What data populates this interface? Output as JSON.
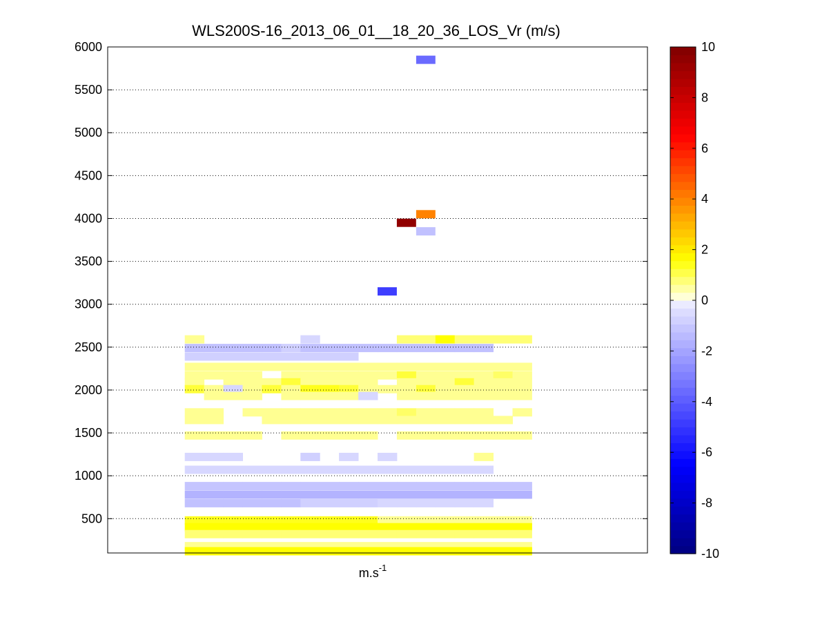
{
  "chart_data": {
    "type": "heatmap",
    "title": "WLS200S-16_2013_06_01__18_20_36_LOS_Vr (m/s)",
    "xlabel": "m.s",
    "xlabel_superscript": "-1",
    "ylabel": "",
    "ylim": [
      100,
      6000
    ],
    "yticks": [
      500,
      1000,
      1500,
      2000,
      2500,
      3000,
      3500,
      4000,
      4500,
      5000,
      5500,
      6000
    ],
    "grid": "horizontal dotted",
    "colorbar": {
      "range": [
        -10,
        10
      ],
      "ticks": [
        -10,
        -8,
        -6,
        -4,
        -2,
        0,
        2,
        4,
        6,
        8,
        10
      ],
      "levels": 64,
      "stops": [
        {
          "v": -10,
          "color": "#00007f"
        },
        {
          "v": -6.5,
          "color": "#0000ff"
        },
        {
          "v": -0.2,
          "color": "#e6e6ff"
        },
        {
          "v": 0,
          "color": "#ffffff"
        },
        {
          "v": 0.2,
          "color": "#ffffcc"
        },
        {
          "v": 1.6,
          "color": "#ffff00"
        },
        {
          "v": 6.5,
          "color": "#ff0000"
        },
        {
          "v": 10,
          "color": "#7f0000"
        }
      ]
    },
    "columns": 18,
    "column_start": 4,
    "column_count": 18,
    "isolated_cells": [
      {
        "col": 16,
        "alt": 5850,
        "value": -3.6
      },
      {
        "col": 16,
        "alt": 4050,
        "value": 4.0
      },
      {
        "col": 15,
        "alt": 3950,
        "value": 9.5
      },
      {
        "col": 16,
        "alt": 3850,
        "value": -1.2
      },
      {
        "col": 14,
        "alt": 3150,
        "value": -4.8
      }
    ],
    "layers": [
      {
        "alt": 2590,
        "values": [
          0.6,
          null,
          null,
          null,
          null,
          null,
          -0.6,
          null,
          null,
          null,
          null,
          0.8,
          0.8,
          1.6,
          0.8,
          0.8,
          0.8,
          0.8
        ]
      },
      {
        "alt": 2490,
        "values": [
          -1.2,
          -1.2,
          -1.2,
          -1.2,
          -1.2,
          -0.8,
          -1.2,
          -1.2,
          -1.2,
          -1.2,
          -1.2,
          -1.2,
          -1.2,
          -1.2,
          -1.2,
          -1.2,
          null,
          null
        ]
      },
      {
        "alt": 2390,
        "values": [
          -0.8,
          -0.8,
          -0.8,
          -0.8,
          -0.8,
          -0.8,
          -0.8,
          -0.8,
          -0.8,
          null,
          null,
          null,
          null,
          null,
          null,
          null,
          null,
          null
        ]
      },
      {
        "alt": 2270,
        "values": [
          0.6,
          0.6,
          0.6,
          0.6,
          0.6,
          0.6,
          0.6,
          0.6,
          0.6,
          0.6,
          0.6,
          0.6,
          0.6,
          0.6,
          0.6,
          0.6,
          0.6,
          0.6
        ]
      },
      {
        "alt": 2170,
        "values": [
          0.6,
          0.6,
          0.6,
          0.6,
          null,
          0.6,
          0.6,
          0.6,
          0.6,
          0.6,
          0.6,
          1.2,
          0.6,
          0.6,
          0.6,
          0.6,
          0.9,
          0.6
        ]
      },
      {
        "alt": 2090,
        "values": [
          0.6,
          null,
          0.6,
          0.6,
          0.6,
          1.2,
          0.6,
          0.6,
          0.6,
          0.6,
          null,
          0.6,
          0.6,
          0.6,
          1.2,
          0.6,
          0.6,
          0.6
        ]
      },
      {
        "alt": 2010,
        "values": [
          1.2,
          0.6,
          -0.6,
          0.6,
          1.2,
          0.6,
          1.4,
          1.4,
          1.2,
          0.6,
          0.6,
          0.6,
          1.2,
          0.6,
          0.6,
          0.6,
          0.6,
          0.6
        ]
      },
      {
        "alt": 1930,
        "values": [
          null,
          0.6,
          0.6,
          0.6,
          null,
          0.6,
          0.6,
          0.6,
          0.6,
          -0.6,
          null,
          0.6,
          0.6,
          0.6,
          0.6,
          0.6,
          0.6,
          0.6
        ]
      },
      {
        "alt": 1740,
        "values": [
          0.6,
          0.6,
          null,
          0.6,
          0.6,
          0.6,
          0.6,
          0.6,
          0.6,
          0.6,
          0.6,
          0.9,
          0.6,
          0.6,
          0.6,
          0.6,
          null,
          0.6
        ]
      },
      {
        "alt": 1650,
        "values": [
          0.6,
          0.6,
          null,
          null,
          0.6,
          0.6,
          0.6,
          0.6,
          0.6,
          0.6,
          0.6,
          0.6,
          0.6,
          0.6,
          0.6,
          0.6,
          0.6,
          null
        ]
      },
      {
        "alt": 1470,
        "values": [
          0.6,
          0.6,
          0.6,
          0.6,
          null,
          0.6,
          0.6,
          0.6,
          0.6,
          0.6,
          null,
          0.6,
          0.6,
          0.6,
          0.6,
          0.6,
          0.6,
          0.6
        ]
      },
      {
        "alt": 1220,
        "values": [
          -0.6,
          -0.6,
          -0.6,
          null,
          null,
          null,
          -0.8,
          null,
          -0.6,
          null,
          -0.6,
          null,
          null,
          null,
          null,
          0.6,
          null,
          null
        ]
      },
      {
        "alt": 1070,
        "values": [
          -0.6,
          -0.6,
          -0.6,
          -0.6,
          -0.6,
          -0.6,
          -0.6,
          -0.6,
          -0.6,
          -0.6,
          -0.6,
          -0.6,
          -0.6,
          -0.6,
          -0.6,
          -0.6,
          null,
          null
        ]
      },
      {
        "alt": 880,
        "values": [
          -1.1,
          -1.1,
          -1.1,
          -1.1,
          -1.1,
          -1.1,
          -1.1,
          -1.1,
          -1.1,
          -1.1,
          -1.1,
          -1.1,
          -1.1,
          -1.1,
          -1.1,
          -1.1,
          -1.1,
          -1.1
        ]
      },
      {
        "alt": 780,
        "values": [
          -1.6,
          -1.6,
          -1.6,
          -1.6,
          -1.6,
          -1.6,
          -1.6,
          -1.6,
          -1.6,
          -1.6,
          -1.6,
          -1.6,
          -1.6,
          -1.6,
          -1.6,
          -1.6,
          -1.6,
          -1.6
        ]
      },
      {
        "alt": 680,
        "values": [
          -1.2,
          -1.2,
          -1.2,
          -1.2,
          -1.2,
          -1.2,
          -0.8,
          -0.8,
          -0.8,
          -0.8,
          -0.6,
          -0.6,
          -0.6,
          -0.6,
          -0.6,
          -0.6,
          null,
          null
        ]
      },
      {
        "alt": 480,
        "values": [
          1.4,
          1.4,
          1.4,
          1.4,
          1.4,
          1.4,
          1.4,
          1.4,
          1.4,
          1.4,
          0.6,
          0.6,
          0.6,
          0.6,
          0.6,
          0.6,
          0.6,
          0.6
        ]
      },
      {
        "alt": 400,
        "values": [
          1.6,
          1.6,
          1.6,
          1.6,
          1.6,
          1.6,
          1.6,
          1.6,
          1.6,
          1.6,
          1.6,
          1.6,
          1.6,
          1.6,
          1.6,
          1.6,
          1.6,
          1.6
        ]
      },
      {
        "alt": 320,
        "values": [
          0.8,
          0.8,
          0.8,
          0.8,
          0.8,
          0.8,
          0.8,
          0.8,
          0.8,
          0.8,
          0.8,
          0.8,
          0.8,
          0.8,
          0.8,
          0.8,
          0.8,
          0.8
        ]
      },
      {
        "alt": 180,
        "values": [
          0.6,
          0.6,
          0.6,
          0.6,
          0.6,
          0.6,
          0.6,
          0.6,
          0.6,
          0.6,
          0.6,
          0.6,
          0.6,
          0.6,
          0.6,
          0.6,
          0.6,
          0.6
        ]
      },
      {
        "alt": 120,
        "values": [
          1.6,
          1.6,
          1.6,
          1.6,
          1.6,
          1.6,
          1.6,
          1.6,
          1.6,
          1.6,
          1.6,
          1.6,
          1.6,
          1.6,
          1.6,
          1.6,
          1.6,
          1.6
        ]
      }
    ]
  }
}
